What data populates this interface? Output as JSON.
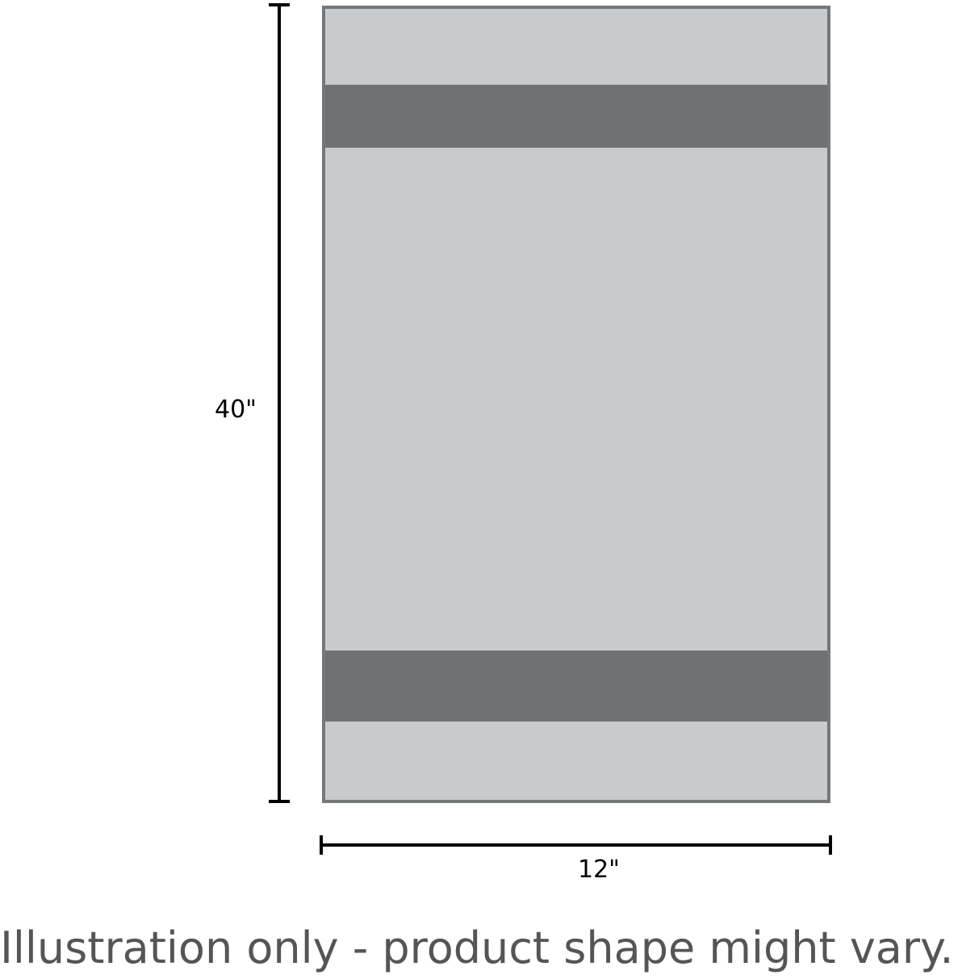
{
  "height_label": "40\"",
  "width_label": "12\"",
  "caption": "Illustration only - product shape might vary.",
  "colors": {
    "towel": "#c8cbcb",
    "stripe": "#6f7272",
    "border": "#757878"
  }
}
